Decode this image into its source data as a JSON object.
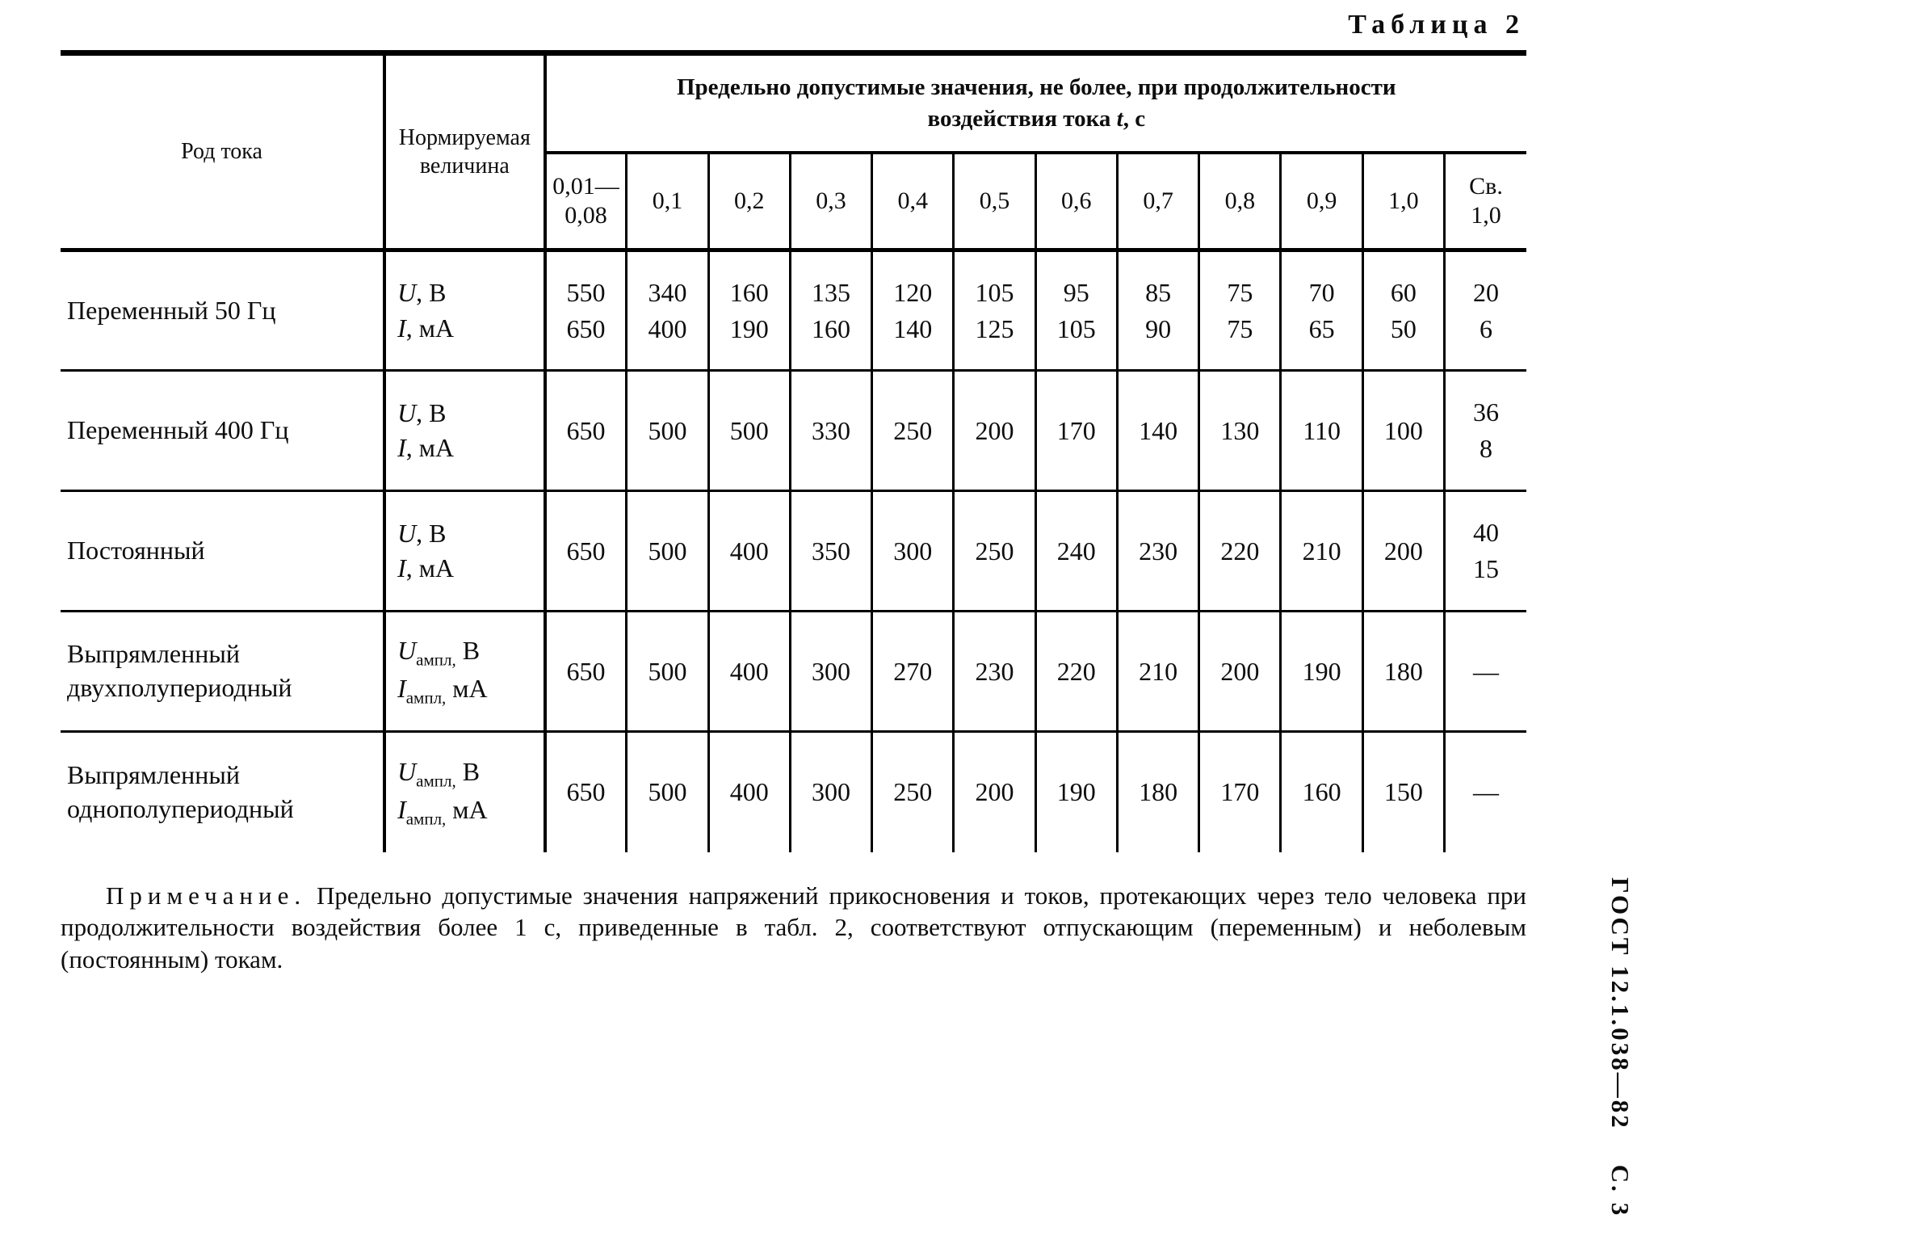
{
  "title": "Таблица 2",
  "side_label": "ГОСТ 12.1.038—82    С. 3",
  "table": {
    "col_kind_header": "Род тока",
    "col_qty_header": "Нормируемая величина",
    "span_header_pre": "Предельно допустимые значения, не более, при продолжительности воздействия тока ",
    "span_header_sym": "t",
    "span_header_post": ", с",
    "time_columns": [
      [
        "0,01—",
        "0,08"
      ],
      [
        "0,1"
      ],
      [
        "0,2"
      ],
      [
        "0,3"
      ],
      [
        "0,4"
      ],
      [
        "0,5"
      ],
      [
        "0,6"
      ],
      [
        "0,7"
      ],
      [
        "0,8"
      ],
      [
        "0,9"
      ],
      [
        "1,0"
      ],
      [
        "Св.",
        "1,0"
      ]
    ],
    "rows": [
      {
        "kind_lines": [
          "Переменный 50 Гц"
        ],
        "quantities": [
          {
            "sym": "U",
            "sep": ", ",
            "sub": "",
            "unit": "В"
          },
          {
            "sym": "I",
            "sep": ", ",
            "sub": "",
            "unit": "мА"
          }
        ],
        "values": [
          [
            "550",
            "650"
          ],
          [
            "340",
            "400"
          ],
          [
            "160",
            "190"
          ],
          [
            "135",
            "160"
          ],
          [
            "120",
            "140"
          ],
          [
            "105",
            "125"
          ],
          [
            "95",
            "105"
          ],
          [
            "85",
            "90"
          ],
          [
            "75",
            "75"
          ],
          [
            "70",
            "65"
          ],
          [
            "60",
            "50"
          ],
          [
            "20",
            "6"
          ]
        ]
      },
      {
        "kind_lines": [
          "Переменный 400 Гц"
        ],
        "quantities": [
          {
            "sym": "U",
            "sep": ", ",
            "sub": "",
            "unit": "В"
          },
          {
            "sym": "I",
            "sep": ", ",
            "sub": "",
            "unit": "мА"
          }
        ],
        "values": [
          [
            "650"
          ],
          [
            "500"
          ],
          [
            "500"
          ],
          [
            "330"
          ],
          [
            "250"
          ],
          [
            "200"
          ],
          [
            "170"
          ],
          [
            "140"
          ],
          [
            "130"
          ],
          [
            "110"
          ],
          [
            "100"
          ],
          [
            "36",
            "8"
          ]
        ]
      },
      {
        "kind_lines": [
          "Постоянный"
        ],
        "quantities": [
          {
            "sym": "U",
            "sep": ", ",
            "sub": "",
            "unit": "В"
          },
          {
            "sym": "I",
            "sep": ", ",
            "sub": "",
            "unit": "мА"
          }
        ],
        "values": [
          [
            "650"
          ],
          [
            "500"
          ],
          [
            "400"
          ],
          [
            "350"
          ],
          [
            "300"
          ],
          [
            "250"
          ],
          [
            "240"
          ],
          [
            "230"
          ],
          [
            "220"
          ],
          [
            "210"
          ],
          [
            "200"
          ],
          [
            "40",
            "15"
          ]
        ]
      },
      {
        "kind_lines": [
          "Выпрямленный",
          "двухполупериодный"
        ],
        "quantities": [
          {
            "sym": "U",
            "sep": " ",
            "sub": "ампл,",
            "unit": "В"
          },
          {
            "sym": "I",
            "sep": " ",
            "sub": "ампл,",
            "unit": "мА"
          }
        ],
        "values": [
          [
            "650"
          ],
          [
            "500"
          ],
          [
            "400"
          ],
          [
            "300"
          ],
          [
            "270"
          ],
          [
            "230"
          ],
          [
            "220"
          ],
          [
            "210"
          ],
          [
            "200"
          ],
          [
            "190"
          ],
          [
            "180"
          ],
          [
            "—"
          ]
        ]
      },
      {
        "kind_lines": [
          "Выпрямленный",
          "однополупериодный"
        ],
        "quantities": [
          {
            "sym": "U",
            "sep": " ",
            "sub": "ампл,",
            "unit": "В"
          },
          {
            "sym": "I",
            "sep": " ",
            "sub": "ампл,",
            "unit": "мА"
          }
        ],
        "values": [
          [
            "650"
          ],
          [
            "500"
          ],
          [
            "400"
          ],
          [
            "300"
          ],
          [
            "250"
          ],
          [
            "200"
          ],
          [
            "190"
          ],
          [
            "180"
          ],
          [
            "170"
          ],
          [
            "160"
          ],
          [
            "150"
          ],
          [
            "—"
          ]
        ]
      }
    ]
  },
  "note": {
    "lead": "Примечание.",
    "text": " Предельно допустимые значения напряжений прикосновения и токов, протекающих через тело человека при продолжительности воздействия более 1 с, приведенные в табл. 2, соответствуют отпускающим (переменным) и неболевым (постоянным) токам."
  }
}
